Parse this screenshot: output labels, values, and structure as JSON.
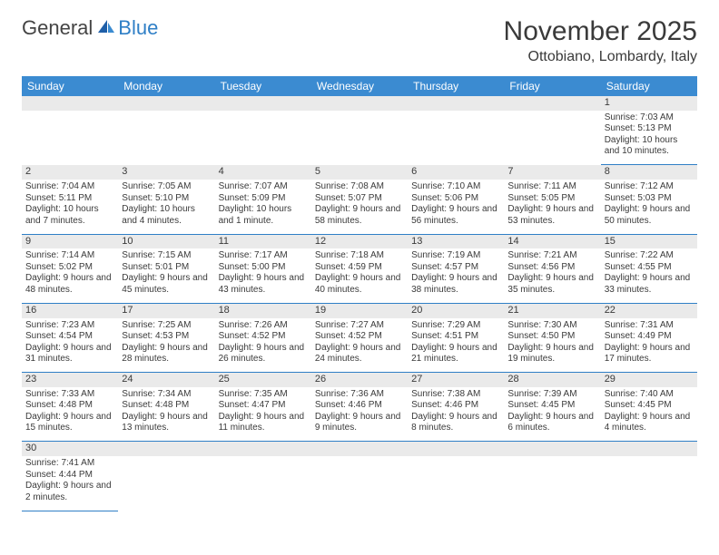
{
  "logo": {
    "text1": "General",
    "text2": "Blue"
  },
  "title": "November 2025",
  "subtitle": "Ottobiano, Lombardy, Italy",
  "colors": {
    "header_bg": "#3b8bd1",
    "accent": "#2f7fc6",
    "daterow_bg": "#eaeaea",
    "text": "#3a3a3a"
  },
  "columns": [
    "Sunday",
    "Monday",
    "Tuesday",
    "Wednesday",
    "Thursday",
    "Friday",
    "Saturday"
  ],
  "weeks": [
    {
      "dates": [
        "",
        "",
        "",
        "",
        "",
        "",
        "1"
      ],
      "cells": [
        null,
        null,
        null,
        null,
        null,
        null,
        {
          "sr": "7:03 AM",
          "ss": "5:13 PM",
          "dl": "10 hours and 10 minutes."
        }
      ]
    },
    {
      "dates": [
        "2",
        "3",
        "4",
        "5",
        "6",
        "7",
        "8"
      ],
      "cells": [
        {
          "sr": "7:04 AM",
          "ss": "5:11 PM",
          "dl": "10 hours and 7 minutes."
        },
        {
          "sr": "7:05 AM",
          "ss": "5:10 PM",
          "dl": "10 hours and 4 minutes."
        },
        {
          "sr": "7:07 AM",
          "ss": "5:09 PM",
          "dl": "10 hours and 1 minute."
        },
        {
          "sr": "7:08 AM",
          "ss": "5:07 PM",
          "dl": "9 hours and 58 minutes."
        },
        {
          "sr": "7:10 AM",
          "ss": "5:06 PM",
          "dl": "9 hours and 56 minutes."
        },
        {
          "sr": "7:11 AM",
          "ss": "5:05 PM",
          "dl": "9 hours and 53 minutes."
        },
        {
          "sr": "7:12 AM",
          "ss": "5:03 PM",
          "dl": "9 hours and 50 minutes."
        }
      ]
    },
    {
      "dates": [
        "9",
        "10",
        "11",
        "12",
        "13",
        "14",
        "15"
      ],
      "cells": [
        {
          "sr": "7:14 AM",
          "ss": "5:02 PM",
          "dl": "9 hours and 48 minutes."
        },
        {
          "sr": "7:15 AM",
          "ss": "5:01 PM",
          "dl": "9 hours and 45 minutes."
        },
        {
          "sr": "7:17 AM",
          "ss": "5:00 PM",
          "dl": "9 hours and 43 minutes."
        },
        {
          "sr": "7:18 AM",
          "ss": "4:59 PM",
          "dl": "9 hours and 40 minutes."
        },
        {
          "sr": "7:19 AM",
          "ss": "4:57 PM",
          "dl": "9 hours and 38 minutes."
        },
        {
          "sr": "7:21 AM",
          "ss": "4:56 PM",
          "dl": "9 hours and 35 minutes."
        },
        {
          "sr": "7:22 AM",
          "ss": "4:55 PM",
          "dl": "9 hours and 33 minutes."
        }
      ]
    },
    {
      "dates": [
        "16",
        "17",
        "18",
        "19",
        "20",
        "21",
        "22"
      ],
      "cells": [
        {
          "sr": "7:23 AM",
          "ss": "4:54 PM",
          "dl": "9 hours and 31 minutes."
        },
        {
          "sr": "7:25 AM",
          "ss": "4:53 PM",
          "dl": "9 hours and 28 minutes."
        },
        {
          "sr": "7:26 AM",
          "ss": "4:52 PM",
          "dl": "9 hours and 26 minutes."
        },
        {
          "sr": "7:27 AM",
          "ss": "4:52 PM",
          "dl": "9 hours and 24 minutes."
        },
        {
          "sr": "7:29 AM",
          "ss": "4:51 PM",
          "dl": "9 hours and 21 minutes."
        },
        {
          "sr": "7:30 AM",
          "ss": "4:50 PM",
          "dl": "9 hours and 19 minutes."
        },
        {
          "sr": "7:31 AM",
          "ss": "4:49 PM",
          "dl": "9 hours and 17 minutes."
        }
      ]
    },
    {
      "dates": [
        "23",
        "24",
        "25",
        "26",
        "27",
        "28",
        "29"
      ],
      "cells": [
        {
          "sr": "7:33 AM",
          "ss": "4:48 PM",
          "dl": "9 hours and 15 minutes."
        },
        {
          "sr": "7:34 AM",
          "ss": "4:48 PM",
          "dl": "9 hours and 13 minutes."
        },
        {
          "sr": "7:35 AM",
          "ss": "4:47 PM",
          "dl": "9 hours and 11 minutes."
        },
        {
          "sr": "7:36 AM",
          "ss": "4:46 PM",
          "dl": "9 hours and 9 minutes."
        },
        {
          "sr": "7:38 AM",
          "ss": "4:46 PM",
          "dl": "9 hours and 8 minutes."
        },
        {
          "sr": "7:39 AM",
          "ss": "4:45 PM",
          "dl": "9 hours and 6 minutes."
        },
        {
          "sr": "7:40 AM",
          "ss": "4:45 PM",
          "dl": "9 hours and 4 minutes."
        }
      ]
    },
    {
      "dates": [
        "30",
        "",
        "",
        "",
        "",
        "",
        ""
      ],
      "cells": [
        {
          "sr": "7:41 AM",
          "ss": "4:44 PM",
          "dl": "9 hours and 2 minutes."
        },
        null,
        null,
        null,
        null,
        null,
        null
      ]
    }
  ]
}
